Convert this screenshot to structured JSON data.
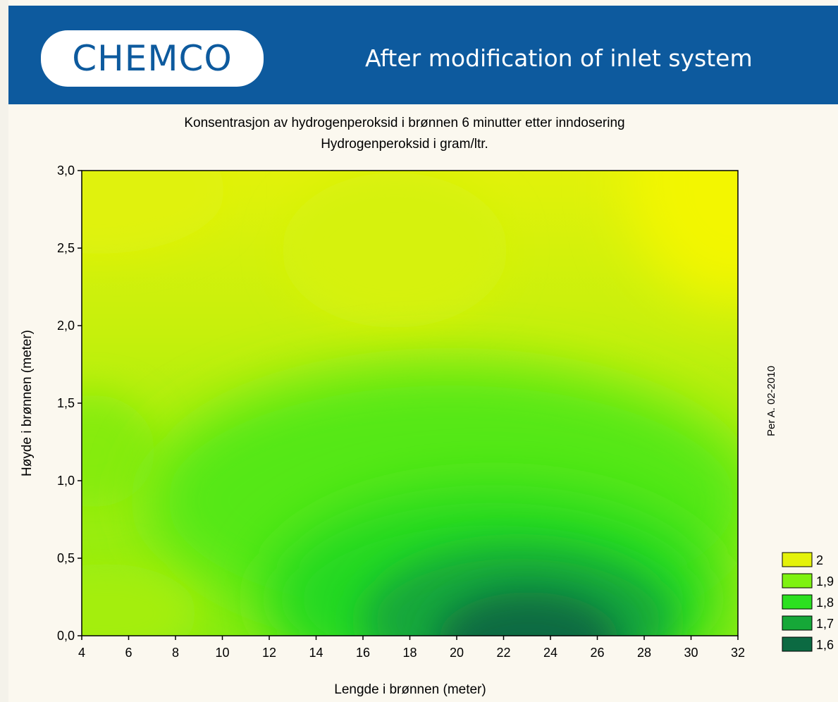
{
  "header": {
    "logo_text": "CHEMCO",
    "title": "After modification of inlet system"
  },
  "credit": "Per A. 02-2010",
  "chart_data": {
    "type": "heatmap",
    "subtype": "contour",
    "title": "Konsentrasjon av hydrogenperoksid i brønnen 6 minutter etter inndosering",
    "subtitle": "Hydrogenperoksid i gram/ltr.",
    "xlabel": "Lengde i brønnen (meter)",
    "ylabel": "Høyde i brønnen (meter)",
    "xlim": [
      4,
      32
    ],
    "ylim": [
      0,
      3
    ],
    "x_ticks": [
      "4",
      "6",
      "8",
      "10",
      "12",
      "14",
      "16",
      "18",
      "20",
      "22",
      "24",
      "26",
      "28",
      "30",
      "32"
    ],
    "y_ticks": [
      "0,0",
      "0,5",
      "1,0",
      "1,5",
      "2,0",
      "2,5",
      "3,0"
    ],
    "legend": [
      {
        "label": "2",
        "color": "#e4f20a"
      },
      {
        "label": "1,9",
        "color": "#7ef211"
      },
      {
        "label": "1,8",
        "color": "#2ce020"
      },
      {
        "label": "1,7",
        "color": "#16a838"
      },
      {
        "label": "1,6",
        "color": "#0c6a42"
      }
    ],
    "grid": false,
    "legend_position": "bottom-right",
    "value_range": [
      1.6,
      2.1
    ],
    "field_features": [
      {
        "type": "minimum",
        "x": 22.5,
        "y": 0.0,
        "value": 1.6
      },
      {
        "type": "maximum",
        "x": 32,
        "y": 3.0,
        "value": 2.05
      },
      {
        "type": "maximum",
        "x": 19,
        "y": 2.6,
        "value": 2.0
      },
      {
        "type": "maximum",
        "x": 4,
        "y": 3.0,
        "value": 2.0
      },
      {
        "type": "local-low",
        "x": 4,
        "y": 1.2,
        "value": 1.9
      }
    ]
  }
}
